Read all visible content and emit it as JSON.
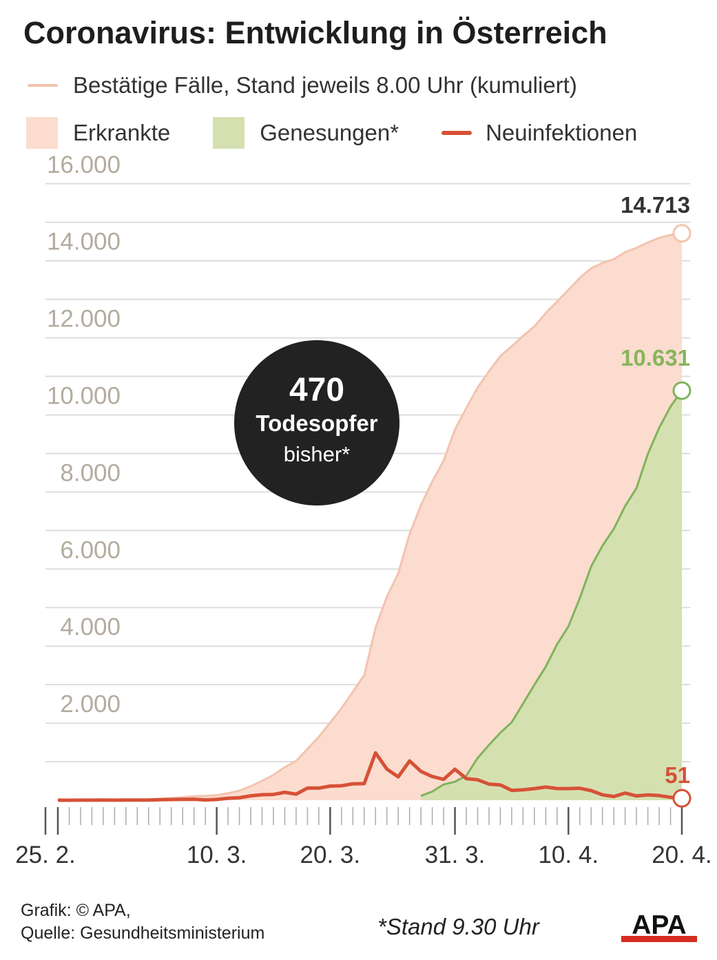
{
  "title": "Coronavirus: Entwicklung in Österreich",
  "legend": {
    "line_label": "Bestätige Fälle, Stand jeweils 8.00 Uhr (kumuliert)",
    "ill_label": "Erkrankte",
    "recovered_label": "Genesungen*",
    "new_label": "Neuinfektionen"
  },
  "colors": {
    "ill_fill": "#fbdccf",
    "ill_line": "#f3c3ae",
    "recovered_fill": "#d5e0b1",
    "recovered_line": "#7fb35a",
    "new_line": "#d65136",
    "grid": "#dddddd",
    "tick_text": "#b3ab9e",
    "recovered_text": "#86b55b",
    "new_text": "#d65136"
  },
  "badge": {
    "number": "470",
    "line1": "Todesopfer",
    "line2": "bisher*"
  },
  "footer": {
    "credit": "Grafik: © APA,",
    "source": "Quelle: Gesundheitsministerium",
    "note": "*Stand 9.30 Uhr",
    "logo": "APA"
  },
  "chart_data": {
    "type": "area",
    "title": "Coronavirus: Entwicklung in Österreich",
    "x": [
      "25.2.",
      "26.2.",
      "27.2.",
      "28.2.",
      "29.2.",
      "1.3.",
      "2.3.",
      "3.3.",
      "4.3.",
      "5.3.",
      "6.3.",
      "7.3.",
      "8.3.",
      "9.3.",
      "10.3.",
      "11.3.",
      "12.3.",
      "13.3.",
      "14.3.",
      "15.3.",
      "16.3.",
      "17.3.",
      "18.3.",
      "19.3.",
      "20.3.",
      "21.3.",
      "22.3.",
      "23.3.",
      "24.3.",
      "25.3.",
      "26.3.",
      "27.3.",
      "28.3.",
      "29.3.",
      "30.3.",
      "31.3.",
      "1.4.",
      "2.4.",
      "3.4.",
      "4.4.",
      "5.4.",
      "6.4.",
      "7.4.",
      "8.4.",
      "9.4.",
      "10.4.",
      "11.4.",
      "12.4.",
      "13.4.",
      "14.4.",
      "15.4.",
      "16.4.",
      "17.4.",
      "18.4.",
      "19.4.",
      "20.4."
    ],
    "x_tick_labels": [
      "25. 2.",
      "10. 3.",
      "20. 3.",
      "31. 3.",
      "10. 4.",
      "20. 4."
    ],
    "x_tick_positions": [
      "25.2.",
      "10.3.",
      "20.3.",
      "31.3.",
      "10.4.",
      "20.4."
    ],
    "y_tick_labels": [
      "2.000",
      "4.000",
      "6.000",
      "8.000",
      "10.000",
      "12.000",
      "14.000",
      "16.000"
    ],
    "ylim": [
      0,
      16500
    ],
    "grid": true,
    "series": [
      {
        "name": "Bestätige Fälle",
        "values": [
          2,
          2,
          3,
          5,
          9,
          10,
          14,
          18,
          24,
          37,
          55,
          79,
          104,
          112,
          131,
          182,
          246,
          361,
          504,
          655,
          860,
          1018,
          1332,
          1646,
          2013,
          2388,
          2814,
          3244,
          4474,
          5282,
          5888,
          6909,
          7657,
          8271,
          8813,
          9618,
          10180,
          10711,
          11129,
          11525,
          11781,
          12051,
          12297,
          12639,
          12942,
          13244,
          13555,
          13806,
          13945,
          14041,
          14226,
          14336,
          14476,
          14595,
          14671,
          14713
        ],
        "end_label": "14.713"
      },
      {
        "name": "Genesungen",
        "values": [
          null,
          null,
          null,
          null,
          null,
          null,
          null,
          null,
          null,
          null,
          null,
          null,
          null,
          null,
          null,
          null,
          null,
          null,
          null,
          null,
          null,
          null,
          null,
          null,
          null,
          null,
          null,
          null,
          null,
          null,
          null,
          null,
          112,
          225,
          410,
          479,
          636,
          1095,
          1436,
          1749,
          2022,
          2507,
          2998,
          3463,
          4046,
          4512,
          5240,
          6064,
          6604,
          7043,
          7633,
          8098,
          8986,
          9667,
          10214,
          10631
        ],
        "end_label": "10.631"
      },
      {
        "name": "Neuinfektionen",
        "values": [
          2,
          0,
          1,
          2,
          4,
          1,
          4,
          4,
          6,
          13,
          18,
          24,
          25,
          8,
          19,
          51,
          64,
          115,
          143,
          151,
          205,
          158,
          314,
          314,
          367,
          375,
          426,
          430,
          1230,
          808,
          606,
          1021,
          748,
          614,
          542,
          805,
          562,
          531,
          418,
          396,
          256,
          270,
          302,
          342,
          303,
          302,
          311,
          251,
          139,
          96,
          185,
          110,
          140,
          119,
          76,
          51
        ],
        "end_label": "51"
      }
    ]
  }
}
